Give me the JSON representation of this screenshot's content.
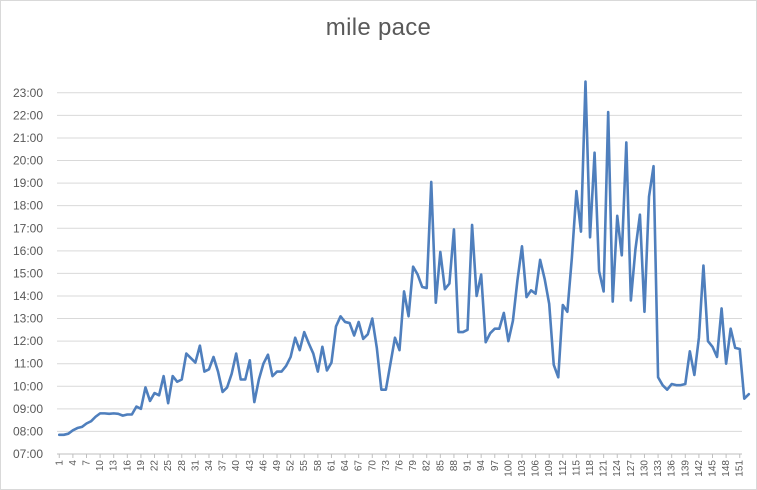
{
  "chart_data": {
    "type": "line",
    "title": "mile pace",
    "xlabel": "",
    "ylabel": "",
    "x_start": 1,
    "x_end": 151,
    "x_tick_labels": [
      "1",
      "4",
      "7",
      "10",
      "13",
      "16",
      "19",
      "22",
      "25",
      "28",
      "31",
      "34",
      "37",
      "40",
      "43",
      "46",
      "49",
      "52",
      "55",
      "58",
      "61",
      "64",
      "67",
      "70",
      "73",
      "76",
      "79",
      "82",
      "85",
      "88",
      "91",
      "94",
      "97",
      "100",
      "103",
      "106",
      "109",
      "112",
      "115",
      "118",
      "121",
      "124",
      "127",
      "130",
      "133",
      "136",
      "139",
      "142",
      "145",
      "148",
      "151"
    ],
    "y_tick_labels": [
      "07:00",
      "08:00",
      "09:00",
      "10:00",
      "11:00",
      "12:00",
      "13:00",
      "14:00",
      "15:00",
      "16:00",
      "17:00",
      "18:00",
      "19:00",
      "20:00",
      "21:00",
      "22:00",
      "23:00"
    ],
    "ylim": [
      7,
      23.7
    ],
    "grid": true,
    "series": [
      {
        "color": "#4f7fbd",
        "values": [
          7.85,
          7.85,
          7.9,
          8.05,
          8.15,
          8.2,
          8.35,
          8.45,
          8.65,
          8.8,
          8.8,
          8.78,
          8.8,
          8.78,
          8.7,
          8.75,
          8.75,
          9.1,
          9.0,
          9.95,
          9.35,
          9.7,
          9.6,
          10.45,
          9.25,
          10.45,
          10.2,
          10.3,
          11.45,
          11.25,
          11.05,
          11.8,
          10.65,
          10.75,
          11.3,
          10.65,
          9.75,
          9.95,
          10.55,
          11.45,
          10.3,
          10.3,
          11.15,
          9.3,
          10.3,
          11.0,
          11.4,
          10.45,
          10.65,
          10.65,
          10.9,
          11.3,
          12.15,
          11.6,
          12.4,
          11.9,
          11.45,
          10.65,
          11.75,
          10.7,
          11.05,
          12.65,
          13.1,
          12.85,
          12.8,
          12.25,
          12.85,
          12.1,
          12.3,
          13.0,
          11.7,
          9.85,
          9.85,
          11.0,
          12.15,
          11.6,
          14.2,
          13.1,
          15.3,
          14.95,
          14.4,
          14.35,
          19.05,
          13.7,
          15.95,
          14.3,
          14.55,
          16.95,
          12.4,
          12.4,
          12.5,
          17.15,
          14.0,
          14.95,
          11.95,
          12.35,
          12.55,
          12.55,
          13.25,
          12.0,
          12.9,
          14.7,
          16.2,
          13.95,
          14.25,
          14.1,
          15.6,
          14.75,
          13.65,
          10.95,
          10.4,
          13.6,
          13.3,
          15.7,
          18.65,
          16.85,
          23.5,
          16.6,
          20.35,
          15.1,
          14.2,
          22.15,
          13.75,
          17.55,
          15.8,
          20.8,
          13.8,
          16.05,
          17.6,
          13.3,
          18.4,
          19.75,
          10.4,
          10.05,
          9.85,
          10.1,
          10.05,
          10.05,
          10.1,
          11.55,
          10.5,
          12.15,
          15.35,
          12.0,
          11.75,
          11.3,
          13.45,
          11.0,
          12.55,
          11.7,
          11.65,
          9.45,
          9.65
        ]
      }
    ]
  }
}
